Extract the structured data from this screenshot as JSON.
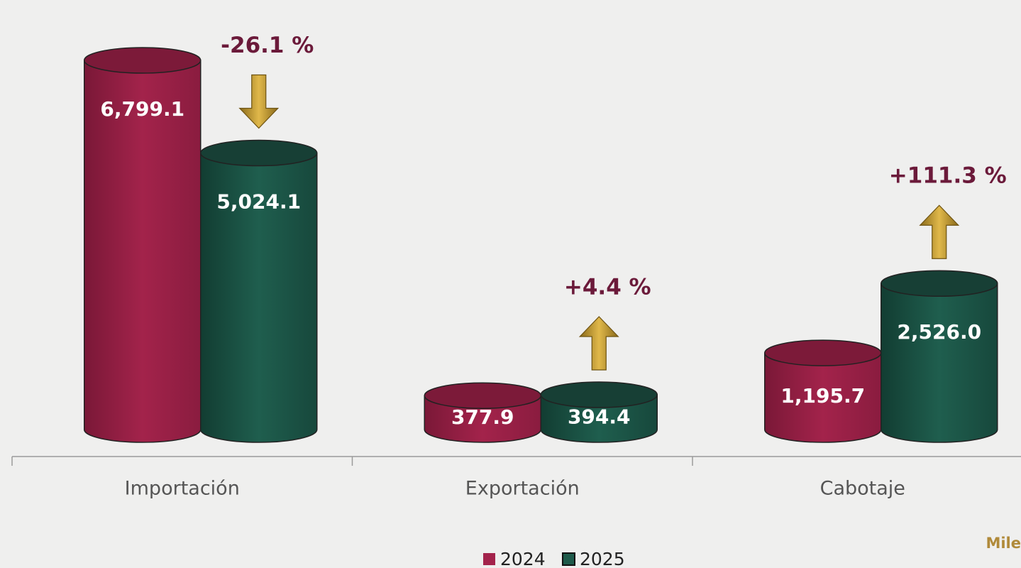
{
  "chart_data": {
    "type": "cylinder-bar",
    "categories": [
      "Importación",
      "Exportación",
      "Cabotaje"
    ],
    "series": [
      {
        "name": "2024",
        "color": "#a3234b",
        "values": [
          6799.1,
          377.9,
          1195.7
        ],
        "value_labels": [
          "6,799.1",
          "377.9",
          "1,195.7"
        ]
      },
      {
        "name": "2025",
        "color": "#1e5a4a",
        "values": [
          5024.1,
          394.4,
          2526.0
        ],
        "value_labels": [
          "5,024.1",
          "394.4",
          "2,526.0"
        ]
      }
    ],
    "change": {
      "values": [
        -26.1,
        4.4,
        111.3
      ],
      "value_labels": [
        "-26.1 %",
        "+4.4 %",
        "+111.3 %"
      ],
      "color": "#6b1a3a",
      "arrow_color": "#b8902a"
    },
    "units_note": "Mile",
    "legend": "bottom"
  }
}
